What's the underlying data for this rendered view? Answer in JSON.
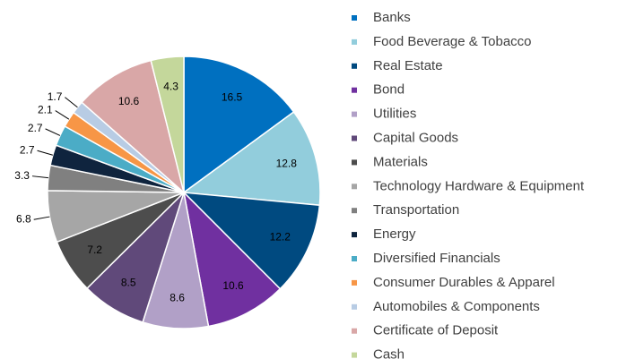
{
  "chart_data": {
    "type": "pie",
    "categories": [
      "Banks",
      "Food Beverage & Tobacco",
      "Real Estate",
      "Bond",
      "Utilities",
      "Capital Goods",
      "Materials",
      "Technology Hardware & Equipment",
      "Transportation",
      "Energy",
      "Diversified Financials",
      "Consumer Durables & Apparel",
      "Automobiles & Components",
      "Certificate of Deposit",
      "Cash"
    ],
    "values": [
      16.5,
      12.8,
      12.2,
      10.6,
      8.6,
      8.5,
      7.2,
      6.8,
      3.3,
      2.7,
      2.7,
      2.1,
      1.7,
      10.6,
      4.3
    ],
    "colors": [
      "#0070c0",
      "#92cddc",
      "#004a80",
      "#7030a0",
      "#b1a0c7",
      "#60497a",
      "#4d4d4d",
      "#a6a6a6",
      "#808080",
      "#0f243e",
      "#4bacc6",
      "#f79646",
      "#b8cce4",
      "#d9a7a7",
      "#c4d79b"
    ],
    "legend": "right"
  }
}
